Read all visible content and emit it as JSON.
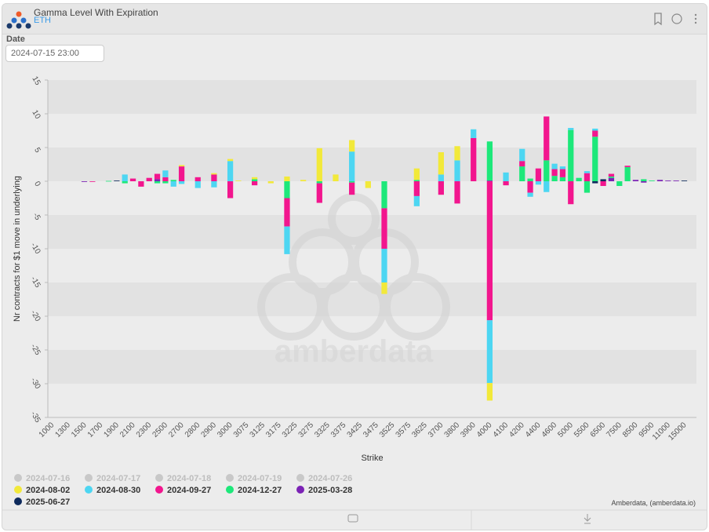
{
  "header": {
    "title": "Gamma Level With Expiration",
    "subtitle": "ETH"
  },
  "date_field": {
    "label": "Date",
    "value": "2024-07-15 23:00"
  },
  "watermark": "amberdata",
  "credit": "Amberdata, (amberdata.io)",
  "chart_data": {
    "type": "bar",
    "stacked": true,
    "x_label": "Strike",
    "y_label": "Nr contracts for $1 move in underlying",
    "categories": [
      "1000",
      null,
      "1300",
      null,
      "1500",
      null,
      "1700",
      null,
      "1900",
      null,
      "2100",
      null,
      "2300",
      null,
      "2500",
      null,
      "2700",
      null,
      "2800",
      null,
      "2900",
      null,
      "3000",
      null,
      "3075",
      null,
      "3125",
      null,
      "3175",
      null,
      "3225",
      null,
      "3275",
      null,
      "3325",
      null,
      "3375",
      null,
      "3425",
      null,
      "3475",
      null,
      "3525",
      null,
      "3575",
      null,
      "3625",
      null,
      "3700",
      null,
      "3800",
      null,
      "3900",
      null,
      "4000",
      null,
      "4100",
      null,
      "4200",
      null,
      "4400",
      null,
      "4600",
      null,
      "5000",
      null,
      "5500",
      null,
      "6500",
      null,
      "7500",
      null,
      "8500",
      null,
      "9500",
      null,
      "11000",
      null,
      "15000",
      null
    ],
    "ylim": [
      -35,
      15
    ],
    "yticks": [
      -35,
      -30,
      -25,
      -20,
      -15,
      -10,
      -5,
      0,
      5,
      10,
      15
    ],
    "grid_bands": true,
    "series": [
      {
        "name": "2024-07-16",
        "color": "#c8c8c8",
        "visible": false
      },
      {
        "name": "2024-07-17",
        "color": "#c8c8c8",
        "visible": false
      },
      {
        "name": "2024-07-18",
        "color": "#c8c8c8",
        "visible": false
      },
      {
        "name": "2024-07-19",
        "color": "#c8c8c8",
        "visible": false
      },
      {
        "name": "2024-07-26",
        "color": "#c8c8c8",
        "visible": false
      },
      {
        "name": "2024-08-02",
        "color": "#f2e93a",
        "visible": true,
        "values": [
          null,
          null,
          null,
          null,
          null,
          null,
          null,
          null,
          null,
          null,
          null,
          null,
          null,
          null,
          null,
          null,
          0.2,
          null,
          null,
          null,
          0.2,
          null,
          0.3,
          0.1,
          null,
          0.3,
          null,
          -0.3,
          null,
          0.7,
          null,
          0.2,
          null,
          4.9,
          null,
          1.0,
          null,
          1.7,
          null,
          -1.0,
          null,
          -1.7,
          null,
          null,
          null,
          1.7,
          null,
          null,
          3.3,
          null,
          2.1,
          null,
          null,
          null,
          -2.6,
          null,
          null,
          null,
          null,
          null,
          null,
          null,
          null,
          null,
          null,
          null,
          null,
          null,
          null,
          null,
          null,
          null,
          null,
          null,
          null,
          null,
          null,
          null,
          null,
          null
        ]
      },
      {
        "name": "2024-08-30",
        "color": "#4dd6f2",
        "visible": true,
        "values": [
          null,
          null,
          null,
          null,
          null,
          null,
          null,
          null,
          null,
          1.0,
          null,
          null,
          null,
          null,
          1.0,
          -0.8,
          -0.4,
          null,
          -1.0,
          null,
          -0.9,
          null,
          3.0,
          null,
          null,
          null,
          null,
          null,
          null,
          -4.1,
          null,
          null,
          null,
          null,
          null,
          null,
          null,
          4.4,
          null,
          null,
          null,
          -5,
          null,
          null,
          null,
          -1.5,
          null,
          null,
          1.0,
          null,
          3.1,
          null,
          1.3,
          null,
          -9.3,
          null,
          1.3,
          null,
          1.8,
          -0.6,
          -0.5,
          -1.6,
          0.8,
          0.4,
          0.3,
          null,
          0.3,
          0.3,
          null,
          null,
          null,
          null,
          null,
          null,
          null,
          null,
          null,
          null,
          null,
          null
        ]
      },
      {
        "name": "2024-09-27",
        "color": "#f2168e",
        "visible": true,
        "values": [
          null,
          null,
          null,
          null,
          null,
          -0.05,
          null,
          null,
          null,
          null,
          0.4,
          -0.8,
          0.5,
          0.8,
          0.6,
          null,
          2.2,
          null,
          0.6,
          null,
          1.0,
          null,
          -2.5,
          null,
          null,
          -0.6,
          null,
          null,
          null,
          -4.2,
          null,
          null,
          null,
          -2.9,
          null,
          null,
          null,
          -1.8,
          null,
          null,
          null,
          -6,
          null,
          null,
          null,
          -2.2,
          null,
          null,
          -2.0,
          null,
          -3.3,
          null,
          6.4,
          null,
          -20.6,
          null,
          -0.6,
          null,
          0.8,
          -1.7,
          1.9,
          6.5,
          1.0,
          1.2,
          -3.4,
          null,
          1.2,
          0.9,
          -0.7,
          0.4,
          null,
          0.2,
          null,
          null,
          null,
          null,
          null,
          null,
          null,
          null
        ]
      },
      {
        "name": "2024-12-27",
        "color": "#1de87a",
        "visible": true,
        "values": [
          null,
          null,
          null,
          null,
          null,
          null,
          null,
          0.05,
          null,
          -0.3,
          null,
          null,
          null,
          -0.3,
          -0.3,
          0.2,
          null,
          null,
          null,
          null,
          null,
          null,
          null,
          null,
          null,
          0.3,
          null,
          null,
          null,
          -2.5,
          null,
          null,
          null,
          -0.3,
          null,
          null,
          null,
          -0.2,
          null,
          null,
          null,
          -4,
          null,
          null,
          null,
          0.2,
          null,
          null,
          null,
          null,
          null,
          null,
          null,
          null,
          5.8,
          null,
          null,
          null,
          2.2,
          0.4,
          null,
          3.1,
          0.8,
          0.6,
          7.6,
          0.5,
          -1.7,
          6.6,
          null,
          0.2,
          -0.7,
          2.1,
          null,
          0.3,
          0.1,
          null,
          null,
          null,
          null,
          null
        ]
      },
      {
        "name": "2025-03-28",
        "color": "#7b22b5",
        "visible": true,
        "values": [
          null,
          null,
          null,
          null,
          -0.1,
          null,
          null,
          null,
          null,
          null,
          null,
          null,
          null,
          0.3,
          null,
          null,
          null,
          null,
          null,
          null,
          null,
          null,
          null,
          null,
          null,
          null,
          null,
          null,
          null,
          null,
          null,
          null,
          null,
          null,
          null,
          null,
          null,
          null,
          null,
          null,
          null,
          null,
          null,
          null,
          null,
          null,
          null,
          null,
          null,
          null,
          null,
          null,
          null,
          null,
          0.1,
          null,
          null,
          null,
          null,
          null,
          null,
          null,
          null,
          null,
          null,
          null,
          null,
          null,
          null,
          0.5,
          null,
          null,
          0.2,
          -0.2,
          null,
          0.2,
          0.1,
          0.1,
          null,
          null
        ]
      },
      {
        "name": "2025-06-27",
        "color": "#0e2a5c",
        "visible": true,
        "values": [
          null,
          null,
          null,
          null,
          null,
          null,
          null,
          null,
          0.1,
          null,
          null,
          null,
          null,
          null,
          null,
          null,
          null,
          null,
          null,
          null,
          null,
          null,
          null,
          null,
          null,
          null,
          null,
          null,
          null,
          null,
          null,
          null,
          null,
          null,
          null,
          null,
          null,
          null,
          null,
          null,
          null,
          null,
          null,
          null,
          null,
          null,
          null,
          null,
          null,
          null,
          null,
          null,
          null,
          null,
          null,
          null,
          null,
          null,
          null,
          null,
          null,
          null,
          null,
          null,
          null,
          null,
          null,
          -0.3,
          0.3,
          null,
          null,
          null,
          null,
          null,
          null,
          null,
          null,
          null,
          0.1,
          null
        ]
      }
    ]
  }
}
